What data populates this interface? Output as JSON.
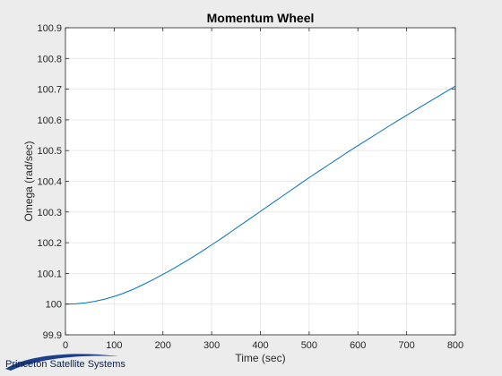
{
  "chart_data": {
    "type": "line",
    "title": "Momentum Wheel",
    "xlabel": "Time (sec)",
    "ylabel": "Omega (rad/sec)",
    "xlim": [
      0,
      800
    ],
    "ylim": [
      99.9,
      100.9
    ],
    "xticks": [
      "0",
      "100",
      "200",
      "300",
      "400",
      "500",
      "600",
      "700",
      "800"
    ],
    "yticks": [
      "99.9",
      "100",
      "100.1",
      "100.2",
      "100.3",
      "100.4",
      "100.5",
      "100.6",
      "100.7",
      "100.8",
      "100.9"
    ],
    "grid": true,
    "series": [
      {
        "color": "#0072bd",
        "x": [
          0,
          20,
          40,
          60,
          80,
          100,
          120,
          140,
          160,
          180,
          200,
          220,
          240,
          260,
          280,
          300,
          320,
          340,
          360,
          380,
          400,
          420,
          440,
          460,
          480,
          500,
          520,
          540,
          560,
          580,
          600,
          620,
          640,
          660,
          680,
          700,
          720,
          740,
          760,
          780,
          800
        ],
        "y": [
          100.0,
          100.001,
          100.004,
          100.009,
          100.016,
          100.025,
          100.036,
          100.049,
          100.064,
          100.08,
          100.097,
          100.114,
          100.133,
          100.152,
          100.172,
          100.193,
          100.214,
          100.236,
          100.258,
          100.28,
          100.302,
          100.324,
          100.346,
          100.368,
          100.39,
          100.412,
          100.433,
          100.454,
          100.475,
          100.496,
          100.516,
          100.536,
          100.556,
          100.576,
          100.596,
          100.615,
          100.634,
          100.653,
          100.672,
          100.691,
          100.71
        ]
      }
    ]
  },
  "logo": {
    "text": "Princeton Satellite Systems"
  }
}
